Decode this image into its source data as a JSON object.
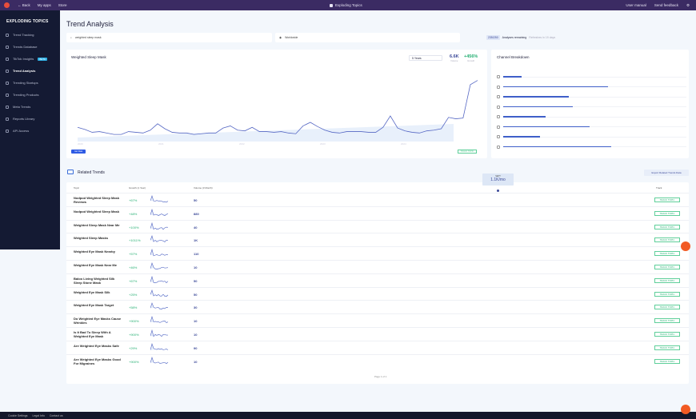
{
  "topbar": {
    "back": "← Back",
    "my_apps": "My apps",
    "store": "Store",
    "app_title": "Exploding Topics",
    "user_manual": "User manual",
    "send_feedback": "Send feedback"
  },
  "sidebar": {
    "brand": "EXPLODING TOPICS",
    "items": [
      {
        "label": "Trend Tracking"
      },
      {
        "label": "Trends Database"
      },
      {
        "label": "TikTok Insights",
        "badge": "BETA"
      },
      {
        "label": "Trend Analysis",
        "active": true
      },
      {
        "label": "Trending Startups"
      },
      {
        "label": "Trending Products"
      },
      {
        "label": "Meta Trends"
      },
      {
        "label": "Reports Library"
      },
      {
        "label": "API Access"
      }
    ]
  },
  "page": {
    "title": "Trend Analysis",
    "search_value": "weighted sleep mask",
    "location_value": "Worldwide",
    "remaining_count": "235/250",
    "remaining_label": "Analyses remaining",
    "refresh_label": "Refreshes in 19 days"
  },
  "chart_card": {
    "title": "Weighted Sleep Mask",
    "range": "5 Years",
    "volume": "6.6K",
    "volume_label": "Volume",
    "growth": "+456%",
    "growth_label": "Growth",
    "export_label": "Get Data",
    "track_label": "TRACK TOPIC"
  },
  "chart_data": {
    "type": "line",
    "title": "Weighted Sleep Mask",
    "x": [
      "2020",
      "2021",
      "2022",
      "2023",
      "2024"
    ],
    "values": [
      20,
      17,
      13,
      14,
      12,
      10,
      10,
      14,
      13,
      12,
      16,
      25,
      18,
      13,
      12,
      12,
      10,
      11,
      12,
      12,
      19,
      22,
      16,
      15,
      20,
      14,
      14,
      13,
      14,
      12,
      11,
      22,
      27,
      21,
      16,
      13,
      12,
      14,
      14,
      14,
      13,
      13,
      20,
      36,
      19,
      15,
      13,
      12,
      15,
      16,
      18,
      34,
      32,
      33,
      80,
      86
    ],
    "ylabel": "Volume"
  },
  "channels": {
    "title": "Channel Breakdown",
    "items": [
      {
        "icon": "news-icon",
        "pct": 10
      },
      {
        "icon": "tiktok-icon",
        "pct": 57
      },
      {
        "icon": "youtube-icon",
        "pct": 36
      },
      {
        "icon": "instagram-icon",
        "pct": 38
      },
      {
        "icon": "x-icon",
        "pct": 23
      },
      {
        "icon": "reddit-icon",
        "pct": 47
      },
      {
        "icon": "amazon-icon",
        "pct": 20
      },
      {
        "icon": "pinterest-icon",
        "pct": 59
      }
    ]
  },
  "related": {
    "title": "Related Trends",
    "export_label": "Export Related Trends Data",
    "columns": [
      "Topic",
      "Growth (1 Year)",
      "Volume (3 Month)",
      "Track"
    ],
    "track_label": "TRACK TOPIC",
    "tooltip_label": "SEPT",
    "tooltip_value": "1.1K/mo",
    "pager": "Page 1 of 1",
    "rows": [
      {
        "topic": "Nodpod Weighted Sleep Mask Reviews",
        "growth": "+67%",
        "volume": "50"
      },
      {
        "topic": "Nodpod Weighted Sleep Mask",
        "growth": "+48%",
        "volume": "880"
      },
      {
        "topic": "Weighted Sleep Mask Near Me",
        "growth": "+100%",
        "volume": "40"
      },
      {
        "topic": "Weighted Sleep Masks",
        "growth": "+1011%",
        "volume": "1K"
      },
      {
        "topic": "Weighted Eye Mask Nearby",
        "growth": "+57%",
        "volume": "110"
      },
      {
        "topic": "Weighted Eye Mask Near Me",
        "growth": "+46%",
        "volume": "10"
      },
      {
        "topic": "Baloo Living Weighted Silk Sleep Stone Mask",
        "growth": "+67%",
        "volume": "50"
      },
      {
        "topic": "Weighted Eye Mask Silk",
        "growth": "+25%",
        "volume": "50"
      },
      {
        "topic": "Weighted Eye Mask Target",
        "growth": "+58%",
        "volume": "30"
      },
      {
        "topic": "Do Weighted Eye Masks Cause Wrinkles",
        "growth": "+900%",
        "volume": "10"
      },
      {
        "topic": "Is It Bad To Sleep With A Weighted Eye Mask",
        "growth": "+900%",
        "volume": "10"
      },
      {
        "topic": "Are Weighted Eye Masks Safe",
        "growth": "+29%",
        "volume": "90"
      },
      {
        "topic": "Are Weighted Eye Masks Good For Migraines",
        "growth": "+900%",
        "volume": "10"
      }
    ]
  },
  "footer": {
    "links": [
      "Cookie Settings",
      "Legal Info",
      "Contact us"
    ]
  }
}
